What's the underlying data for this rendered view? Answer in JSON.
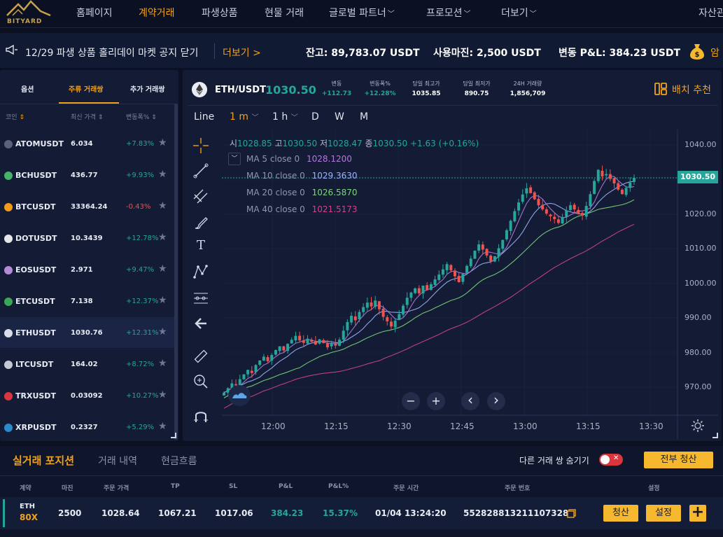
{
  "logo": {
    "text": "BITYARD"
  },
  "nav": {
    "items": [
      {
        "label": "홈페이지"
      },
      {
        "label": "계약거래"
      },
      {
        "label": "파생상품"
      },
      {
        "label": "현물 거래"
      },
      {
        "label": "글로벌 파트너"
      },
      {
        "label": "프로모션"
      },
      {
        "label": "더보기"
      },
      {
        "label": "자산관"
      }
    ]
  },
  "notice": {
    "text": "12/29 파생 상품 홀리데이 마켓 공지 닫기",
    "more": "더보기 >",
    "balance": "잔고: 89,783.07 USDT",
    "margin": "사용마진: 2,500 USDT",
    "pnl": "변동 P&L: 384.23 USDT",
    "extra": "암"
  },
  "market": {
    "tabs": [
      "옵션",
      "주류 거래쌍",
      "추가 거래쌍"
    ],
    "headers": [
      "코인",
      "최신 가격",
      "변동폭%"
    ],
    "rows": [
      {
        "symbol": "ATOMUSDT",
        "price": "6.034",
        "change": "+7.83%",
        "color": "#5b6178"
      },
      {
        "symbol": "BCHUSDT",
        "price": "436.77",
        "change": "+9.93%",
        "color": "#46b36b"
      },
      {
        "symbol": "BTCUSDT",
        "price": "33364.24",
        "change": "-0.43%",
        "color": "#f29a1a"
      },
      {
        "symbol": "DOTUSDT",
        "price": "10.3439",
        "change": "+12.78%",
        "color": "#e6e6e6"
      },
      {
        "symbol": "EOSUSDT",
        "price": "2.971",
        "change": "+9.47%",
        "color": "#b58bd8"
      },
      {
        "symbol": "ETCUSDT",
        "price": "7.138",
        "change": "+12.37%",
        "color": "#3aa657"
      },
      {
        "symbol": "ETHUSDT",
        "price": "1030.76",
        "change": "+12.31%",
        "color": "#d9dde8"
      },
      {
        "symbol": "LTCUSDT",
        "price": "164.02",
        "change": "+8.72%",
        "color": "#c4c8d4"
      },
      {
        "symbol": "TRXUSDT",
        "price": "0.03092",
        "change": "+10.27%",
        "color": "#d9363e"
      },
      {
        "symbol": "XRPUSDT",
        "price": "0.2327",
        "change": "+5.29%",
        "color": "#2b8ac9"
      }
    ]
  },
  "ticker": {
    "pair": "ETH/USDT",
    "price": "1030.50",
    "stats": [
      {
        "label": "변동",
        "value": "+112.73"
      },
      {
        "label": "변동폭%",
        "value": "+12.28%"
      },
      {
        "label": "당일 최고가",
        "value": "1035.85"
      },
      {
        "label": "당일 최저가",
        "value": "890.75"
      },
      {
        "label": "24H 거래량",
        "value": "1,856,709"
      }
    ],
    "recommend": "배치 추천"
  },
  "timeframes": [
    "Line",
    "1 m",
    "1 h",
    "D",
    "W",
    "M"
  ],
  "ohlc": {
    "o_label": "시",
    "o": "1028.85",
    "h_label": "고",
    "h": "1030.50",
    "l_label": "저",
    "l": "1028.47",
    "c_label": "종",
    "c": "1030.50",
    "chg": "+1.63 (+0.16%)"
  },
  "ma": [
    {
      "label": "MA 5 close 0",
      "value": "1028.1200",
      "color": "#b37be0"
    },
    {
      "label": "MA 10 close 0",
      "value": "1029.3630",
      "color": "#9fb4ff"
    },
    {
      "label": "MA 20 close 0",
      "value": "1026.5870",
      "color": "#7dd67d"
    },
    {
      "label": "MA 40 close 0",
      "value": "1021.5173",
      "color": "#d0458a"
    }
  ],
  "chart_data": {
    "type": "candlestick",
    "x_ticks": [
      "12:00",
      "12:15",
      "12:30",
      "12:45",
      "13:00",
      "13:15",
      "13:30"
    ],
    "y_ticks": [
      "1040.00",
      "1030.00",
      "1020.00",
      "1010.00",
      "1000.00",
      "990.00",
      "980.00",
      "970.00"
    ],
    "ylim": [
      965,
      1043
    ],
    "last_price": "1030.50",
    "closes": [
      968.5,
      969.8,
      971.2,
      970.6,
      972.4,
      973.8,
      975.1,
      974.2,
      976.5,
      977.8,
      978.9,
      977.6,
      979.4,
      980.8,
      981.9,
      980.7,
      982.6,
      983.8,
      984.9,
      983.6,
      982.9,
      984.1,
      983.2,
      982.4,
      983.9,
      982.8,
      981.6,
      982.9,
      982.1,
      983.8,
      986.4,
      988.9,
      990.7,
      989.4,
      991.8,
      993.2,
      994.5,
      993.4,
      995.1,
      992.6,
      990.4,
      989.1,
      987.6,
      989.3,
      991.2,
      993.6,
      995.9,
      997.4,
      998.6,
      997.2,
      999.4,
      998.1,
      999.8,
      1001.2,
      1002.6,
      1004.1,
      1005.6,
      1003.8,
      1002.1,
      1000.4,
      1002.8,
      1005.1,
      1007.2,
      1009.5,
      1011.3,
      1009.8,
      1008.1,
      1006.4,
      1007.9,
      1010.2,
      1012.6,
      1015.4,
      1018.1,
      1020.9,
      1023.4,
      1025.7,
      1027.5,
      1026.1,
      1024.3,
      1022.6,
      1021.4,
      1020.2,
      1019.4,
      1018.6,
      1017.5,
      1019.2,
      1021.1,
      1022.6,
      1021.4,
      1020.1,
      1019.6,
      1022.4,
      1025.8,
      1029.6,
      1032.8,
      1030.9,
      1031.6,
      1030.2,
      1028.9,
      1027.1,
      1025.8,
      1027.6,
      1029.1,
      1030.5
    ]
  },
  "chart_controls": {
    "minus": "−",
    "plus": "+",
    "prev": "‹",
    "next": "›"
  },
  "bottom": {
    "tabs": [
      "실거래 포지션",
      "거래 내역",
      "현금흐름"
    ],
    "hide_label": "다른 거래 쌍 숨기기",
    "close_all": "전부 청산",
    "headers": [
      "계약",
      "마진",
      "주문 가격",
      "TP",
      "SL",
      "P&L",
      "P&L%",
      "주문 시간",
      "주문 번호",
      "설정"
    ],
    "position": {
      "symbol": "ETH",
      "leverage": "80X",
      "margin": "2500",
      "price": "1028.64",
      "tp": "1067.21",
      "sl": "1017.06",
      "pnl": "384.23",
      "pnl_pct": "15.37%",
      "time": "01/04 13:24:20",
      "order_no": "552828813211107328",
      "close_btn": "청산",
      "set_btn": "설정",
      "add_btn": "+"
    }
  },
  "colors": {
    "accent": "#f0a11a",
    "up": "#26a69a",
    "down": "#ef5350",
    "bg": "#0b1123"
  }
}
